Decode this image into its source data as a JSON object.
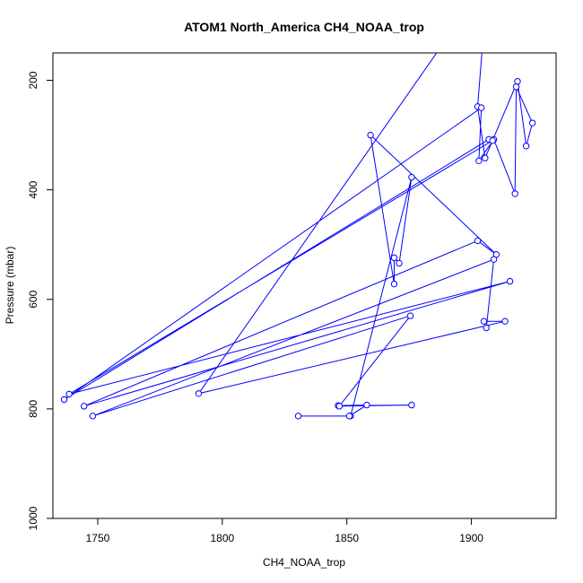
{
  "chart_data": {
    "type": "line",
    "title": "ATOM1 North_America CH4_NOAA_trop",
    "xlabel": "CH4_NOAA_trop",
    "ylabel": "Pressure (mbar)",
    "xlim": [
      1732,
      1934
    ],
    "ylim": [
      1000,
      150
    ],
    "y_reversed": true,
    "x_ticks": [
      1750,
      1800,
      1850,
      1900
    ],
    "y_ticks": [
      200,
      400,
      600,
      800,
      1000
    ],
    "grid": false,
    "legend": "none",
    "markers": "open-circle",
    "series": [
      {
        "color": "#0000ff",
        "x": [
          1906.5,
          1902.5,
          1905.5,
          1918.5,
          1922,
          1924.5,
          1918,
          1917.5,
          1909,
          1903,
          1904,
          1736.5,
          1907,
          1908.5,
          1738.5,
          1915.5,
          1744.5,
          1902.5,
          1910,
          1859.5,
          1869,
          1869,
          1871,
          1876,
          1851.5,
          1830.5,
          1851,
          1858,
          1846.5,
          1876,
          1847,
          1875.5,
          1748,
          1909,
          1906,
          1905,
          1913.5,
          1790.5,
          1906
        ],
        "y": [
          20,
          248,
          342,
          202,
          320,
          278,
          212,
          407,
          308,
          347,
          250,
          783,
          308,
          310,
          773,
          567,
          795,
          493,
          518,
          300,
          572,
          524,
          534,
          377,
          813,
          813,
          813,
          793,
          794,
          793,
          795,
          630,
          813,
          527,
          652,
          640,
          640,
          772,
          20
        ]
      }
    ]
  }
}
